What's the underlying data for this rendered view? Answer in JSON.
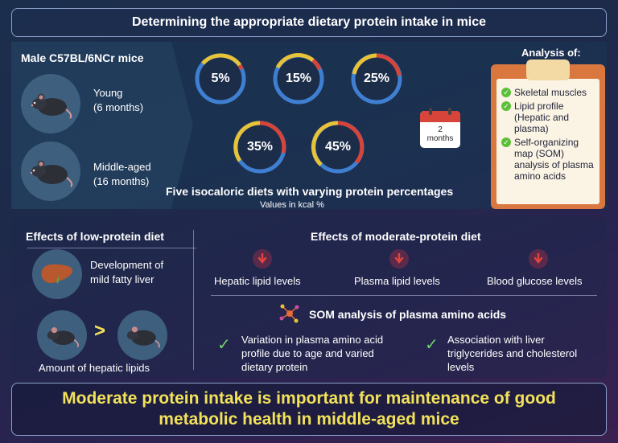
{
  "header": {
    "title": "Determining the appropriate dietary protein intake in mice"
  },
  "mice": {
    "heading": "Male C57BL/6NCr mice",
    "young": {
      "label": "Young",
      "age": "(6 months)"
    },
    "middle": {
      "label": "Middle-aged",
      "age": "(16 months)"
    }
  },
  "diets": {
    "rings": [
      "5%",
      "15%",
      "25%",
      "35%",
      "45%"
    ],
    "caption": "Five isocaloric diets with varying protein percentages",
    "subcaption": "Values in kcal %"
  },
  "calendar": {
    "duration_num": "2",
    "duration_unit": "months"
  },
  "analysis": {
    "heading": "Analysis of:",
    "items": [
      "Skeletal muscles",
      "Lipid profile (Hepatic and plasma)",
      "Self-organizing map (SOM) analysis of plasma amino acids"
    ]
  },
  "low_protein": {
    "heading": "Effects of low-protein diet",
    "liver_text_1": "Development of",
    "liver_text_2": "mild fatty liver",
    "compare_symbol": ">",
    "compare_caption": "Amount of hepatic lipids"
  },
  "moderate_protein": {
    "heading": "Effects of moderate-protein diet",
    "effects": [
      "Hepatic lipid levels",
      "Plasma lipid levels",
      "Blood glucose levels"
    ],
    "som_heading": "SOM analysis of plasma amino acids",
    "som_points": [
      "Variation in plasma amino acid profile due to age and varied dietary protein",
      "Association with liver triglycerides and cholesterol levels"
    ]
  },
  "conclusion": {
    "line1": "Moderate protein intake is important for maintenance of good",
    "line2": "metabolic health in middle-aged mice"
  },
  "colors": {
    "accent_yellow": "#f2e25a",
    "ring_blue": "#3f7fd1",
    "ring_red": "#d6443a",
    "ring_yellow": "#e7c33a",
    "check_green": "#6fd36b",
    "clipboard_orange": "#d9773e"
  }
}
